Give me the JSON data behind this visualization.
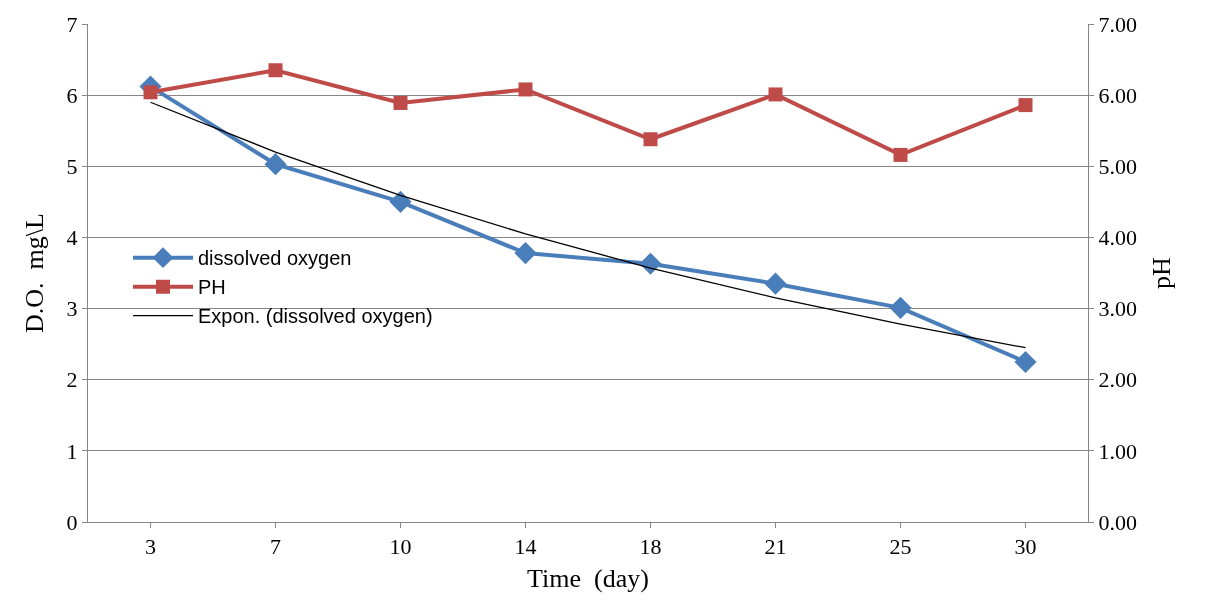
{
  "chart_data": {
    "type": "line",
    "xlabel": "Time  (day)",
    "ylabel": "D.O.  mg\\L",
    "y2label": "pH",
    "categories": [
      "3",
      "7",
      "10",
      "14",
      "18",
      "21",
      "25",
      "30"
    ],
    "series": [
      {
        "name": "dissolved oxygen",
        "color": "#4a7ebb",
        "marker": "diamond",
        "values": [
          6.12,
          5.03,
          4.5,
          3.78,
          3.63,
          3.35,
          3.01,
          2.25
        ]
      },
      {
        "name": "PH",
        "color": "#be4b48",
        "marker": "square",
        "axis": "y2",
        "values": [
          6.04,
          6.35,
          5.89,
          6.08,
          5.38,
          6.01,
          5.16,
          5.86
        ]
      },
      {
        "name": "Expon. (dissolved oxygen)",
        "color": "#000000",
        "marker": "none",
        "values": [
          5.9,
          5.2,
          4.59,
          4.05,
          3.57,
          3.15,
          2.78,
          2.45
        ]
      }
    ],
    "ylim": [
      0,
      7
    ],
    "yticks": [
      0,
      1,
      2,
      3,
      4,
      5,
      6,
      7
    ],
    "y2lim": [
      0,
      7
    ],
    "y2ticks": [
      {
        "value": 0,
        "label": "0.00"
      },
      {
        "value": 1,
        "label": "1.00"
      },
      {
        "value": 2,
        "label": "2.00"
      },
      {
        "value": 3,
        "label": "3.00"
      },
      {
        "value": 4,
        "label": "4.00"
      },
      {
        "value": 5,
        "label": "5.00"
      },
      {
        "value": 6,
        "label": "6.00"
      },
      {
        "value": 7,
        "label": "7.00"
      }
    ],
    "grid": "y",
    "legend": "left"
  }
}
